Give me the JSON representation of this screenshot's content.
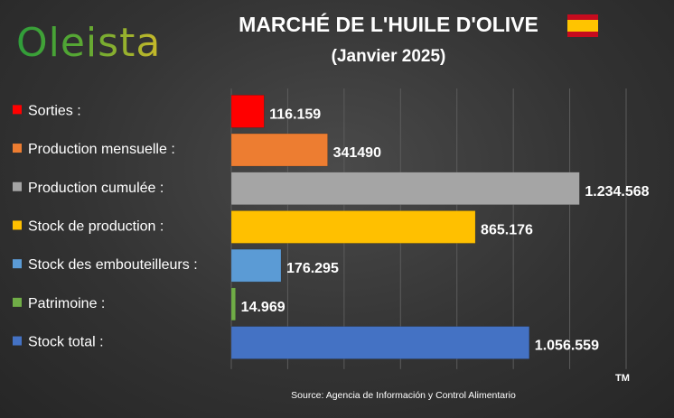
{
  "brand": {
    "logo_text": "Oleista"
  },
  "header": {
    "title": "MARCHÉ DE L'HUILE D'OLIVE",
    "subtitle": "(Janvier 2025)",
    "flag_icon": "spain-flag-icon"
  },
  "footer": {
    "source": "Source: Agencia de Información y Control Alimentario",
    "trademark": "TM"
  },
  "chart_data": {
    "type": "bar",
    "orientation": "horizontal",
    "title": "MARCHÉ DE L'HUILE D'OLIVE",
    "subtitle": "(Janvier 2025)",
    "xlabel": "",
    "ylabel": "",
    "xlim": [
      0,
      1400000
    ],
    "grid": true,
    "categories": [
      "Sorties :",
      "Production mensuelle :",
      "Production cumulée :",
      "Stock de production :",
      "Stock des embouteilleurs :",
      "Patrimoine :",
      "Stock total :"
    ],
    "values": [
      116159,
      341490,
      1234568,
      865176,
      176295,
      14969,
      1056559
    ],
    "labels": [
      "116.159",
      "341490",
      "1.234.568",
      "865.176",
      "176.295",
      "14.969",
      "1.056.559"
    ],
    "colors": [
      "#ff0000",
      "#ed7d31",
      "#a5a5a5",
      "#ffc000",
      "#5b9bd5",
      "#70ad47",
      "#4472c4"
    ]
  }
}
